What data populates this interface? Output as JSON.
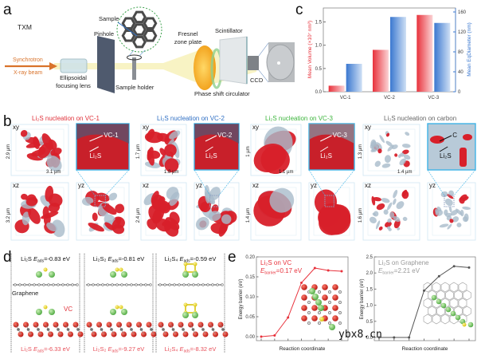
{
  "panel_labels": {
    "a": "a",
    "b": "b",
    "c": "c",
    "d": "d",
    "e": "e"
  },
  "panel_a": {
    "title": "TXM",
    "source_line1": "Synchrotron",
    "source_line2": "X-ray beam",
    "lens_line1": "Ellipsoidal",
    "lens_line2": "focusing lens",
    "pinhole": "Pinhole",
    "sample": "Sample",
    "sample_holder": "Sample holder",
    "fresnel_line1": "Fresnel",
    "fresnel_line2": "zone plate",
    "phase_shift": "Phase shift circulator",
    "scintillator": "Scintillator",
    "ccd": "CCD",
    "colors": {
      "beam_arrow": "#d9732b",
      "fresnel": "#f0a81c"
    }
  },
  "panel_b": {
    "groups": [
      {
        "title": "Li₂S nucleation on VC-1",
        "color": "#e0323a",
        "xy": "xy",
        "xz": "xz",
        "yz": "yz",
        "scale_y": "2.9 µm",
        "scale_x": "3.1 µm",
        "scale_z": "3.2 µm",
        "zoom_label1": "VC-1",
        "zoom_label2": "Li₂S"
      },
      {
        "title": "Li₂S nucleation on VC-2",
        "color": "#2f6fc4",
        "xy": "xy",
        "xz": "xz",
        "yz": "yz",
        "scale_y": "1.7 µm",
        "scale_x": "1.8 µm",
        "scale_z": "2.4 µm",
        "zoom_label1": "VC-2",
        "zoom_label2": "Li₂S"
      },
      {
        "title": "Li₂S nucleation on VC-3",
        "color": "#3db53d",
        "xy": "xy",
        "xz": "xz",
        "yz": "yz",
        "scale_y": "1 µm",
        "scale_x": "1.1 µm",
        "scale_z": "1.4 µm",
        "zoom_label1": "VC-3",
        "zoom_label2": "Li₂S"
      },
      {
        "title": "Li₂S nucleation on carbon",
        "color": "#666666",
        "xy": "xy",
        "xz": "xz",
        "yz": "yz",
        "scale_y": "1.3 µm",
        "scale_x": "1.4 µm",
        "scale_z": "1.6 µm",
        "zoom_label1": "C",
        "zoom_label2": "Li₂S"
      }
    ]
  },
  "chart_data": [
    {
      "id": "c",
      "type": "bar",
      "categories": [
        "VC-1",
        "VC-2",
        "VC-3"
      ],
      "series": [
        {
          "name": "Mean Volume",
          "axis": "left",
          "color": "#e8323c",
          "values": [
            0.13,
            0.9,
            1.65
          ]
        },
        {
          "name": "Mean EqDiameter",
          "axis": "right",
          "color": "#3b78d0",
          "values": [
            56,
            150,
            138
          ]
        }
      ],
      "ylabel_left": "Mean Volume (×10⁷ nm³)",
      "ylabel_right": "Mean EqDiameter (nm)",
      "ylim_left": [
        0,
        1.8
      ],
      "yticks_left": [
        "0.0",
        "0.5",
        "1.0",
        "1.5"
      ],
      "ylim_right": [
        0,
        168
      ],
      "yticks_right": [
        "0",
        "40",
        "80",
        "120",
        "160"
      ]
    },
    {
      "id": "e-vc",
      "type": "line",
      "x": [
        0,
        1,
        2,
        3,
        4,
        5,
        6
      ],
      "values": [
        0.0,
        0.003,
        0.048,
        0.135,
        0.172,
        0.166,
        0.164
      ],
      "color": "#e8323c",
      "title": "Li₂S on VC",
      "annotation": "E_barrier=0.17 eV",
      "annotation_main": "E",
      "annotation_sub": "barrier",
      "annotation_value": "=0.17 eV",
      "xlabel": "Reaction coordinate",
      "ylabel": "Energy barrier (eV)",
      "ylim": [
        -0.01,
        0.2
      ],
      "yticks": [
        "0.00",
        "0.05",
        "0.10",
        "0.15",
        "0.20"
      ]
    },
    {
      "id": "e-graphene",
      "type": "line",
      "x": [
        0,
        1,
        2,
        3,
        4,
        5,
        6
      ],
      "values": [
        0.0,
        0.0,
        0.0,
        1.45,
        1.9,
        2.21,
        2.17
      ],
      "color": "#555555",
      "title": "Li₂S on Graphene",
      "annotation": "E_barrier=2.21 eV",
      "annotation_main": "E",
      "annotation_sub": "barrier",
      "annotation_value": "=2.21 eV",
      "xlabel": "Reaction coordinate",
      "ylabel": "Energy barrier (eV)",
      "ylim": [
        -0.1,
        2.5
      ],
      "yticks": [
        "0.0",
        "0.5",
        "1.0",
        "1.5",
        "2.0",
        "2.5"
      ]
    }
  ],
  "panel_d": {
    "graphene_label": "Graphene",
    "vc_label": "VC",
    "columns": [
      {
        "species": "Li₂S",
        "top": "E",
        "sub": "ads",
        "top_value": "=-0.83 eV",
        "bottom_value": "=-6.33 eV"
      },
      {
        "species": "Li₂S₂",
        "top": "E",
        "sub": "ads",
        "top_value": "=-0.81 eV",
        "bottom_value": "=-9.27 eV"
      },
      {
        "species": "Li₂S₄",
        "top": "E",
        "sub": "ads",
        "top_value": "=-0.59 eV",
        "bottom_value": "=-8.32 eV"
      }
    ]
  },
  "watermark": "ybx8.cn"
}
